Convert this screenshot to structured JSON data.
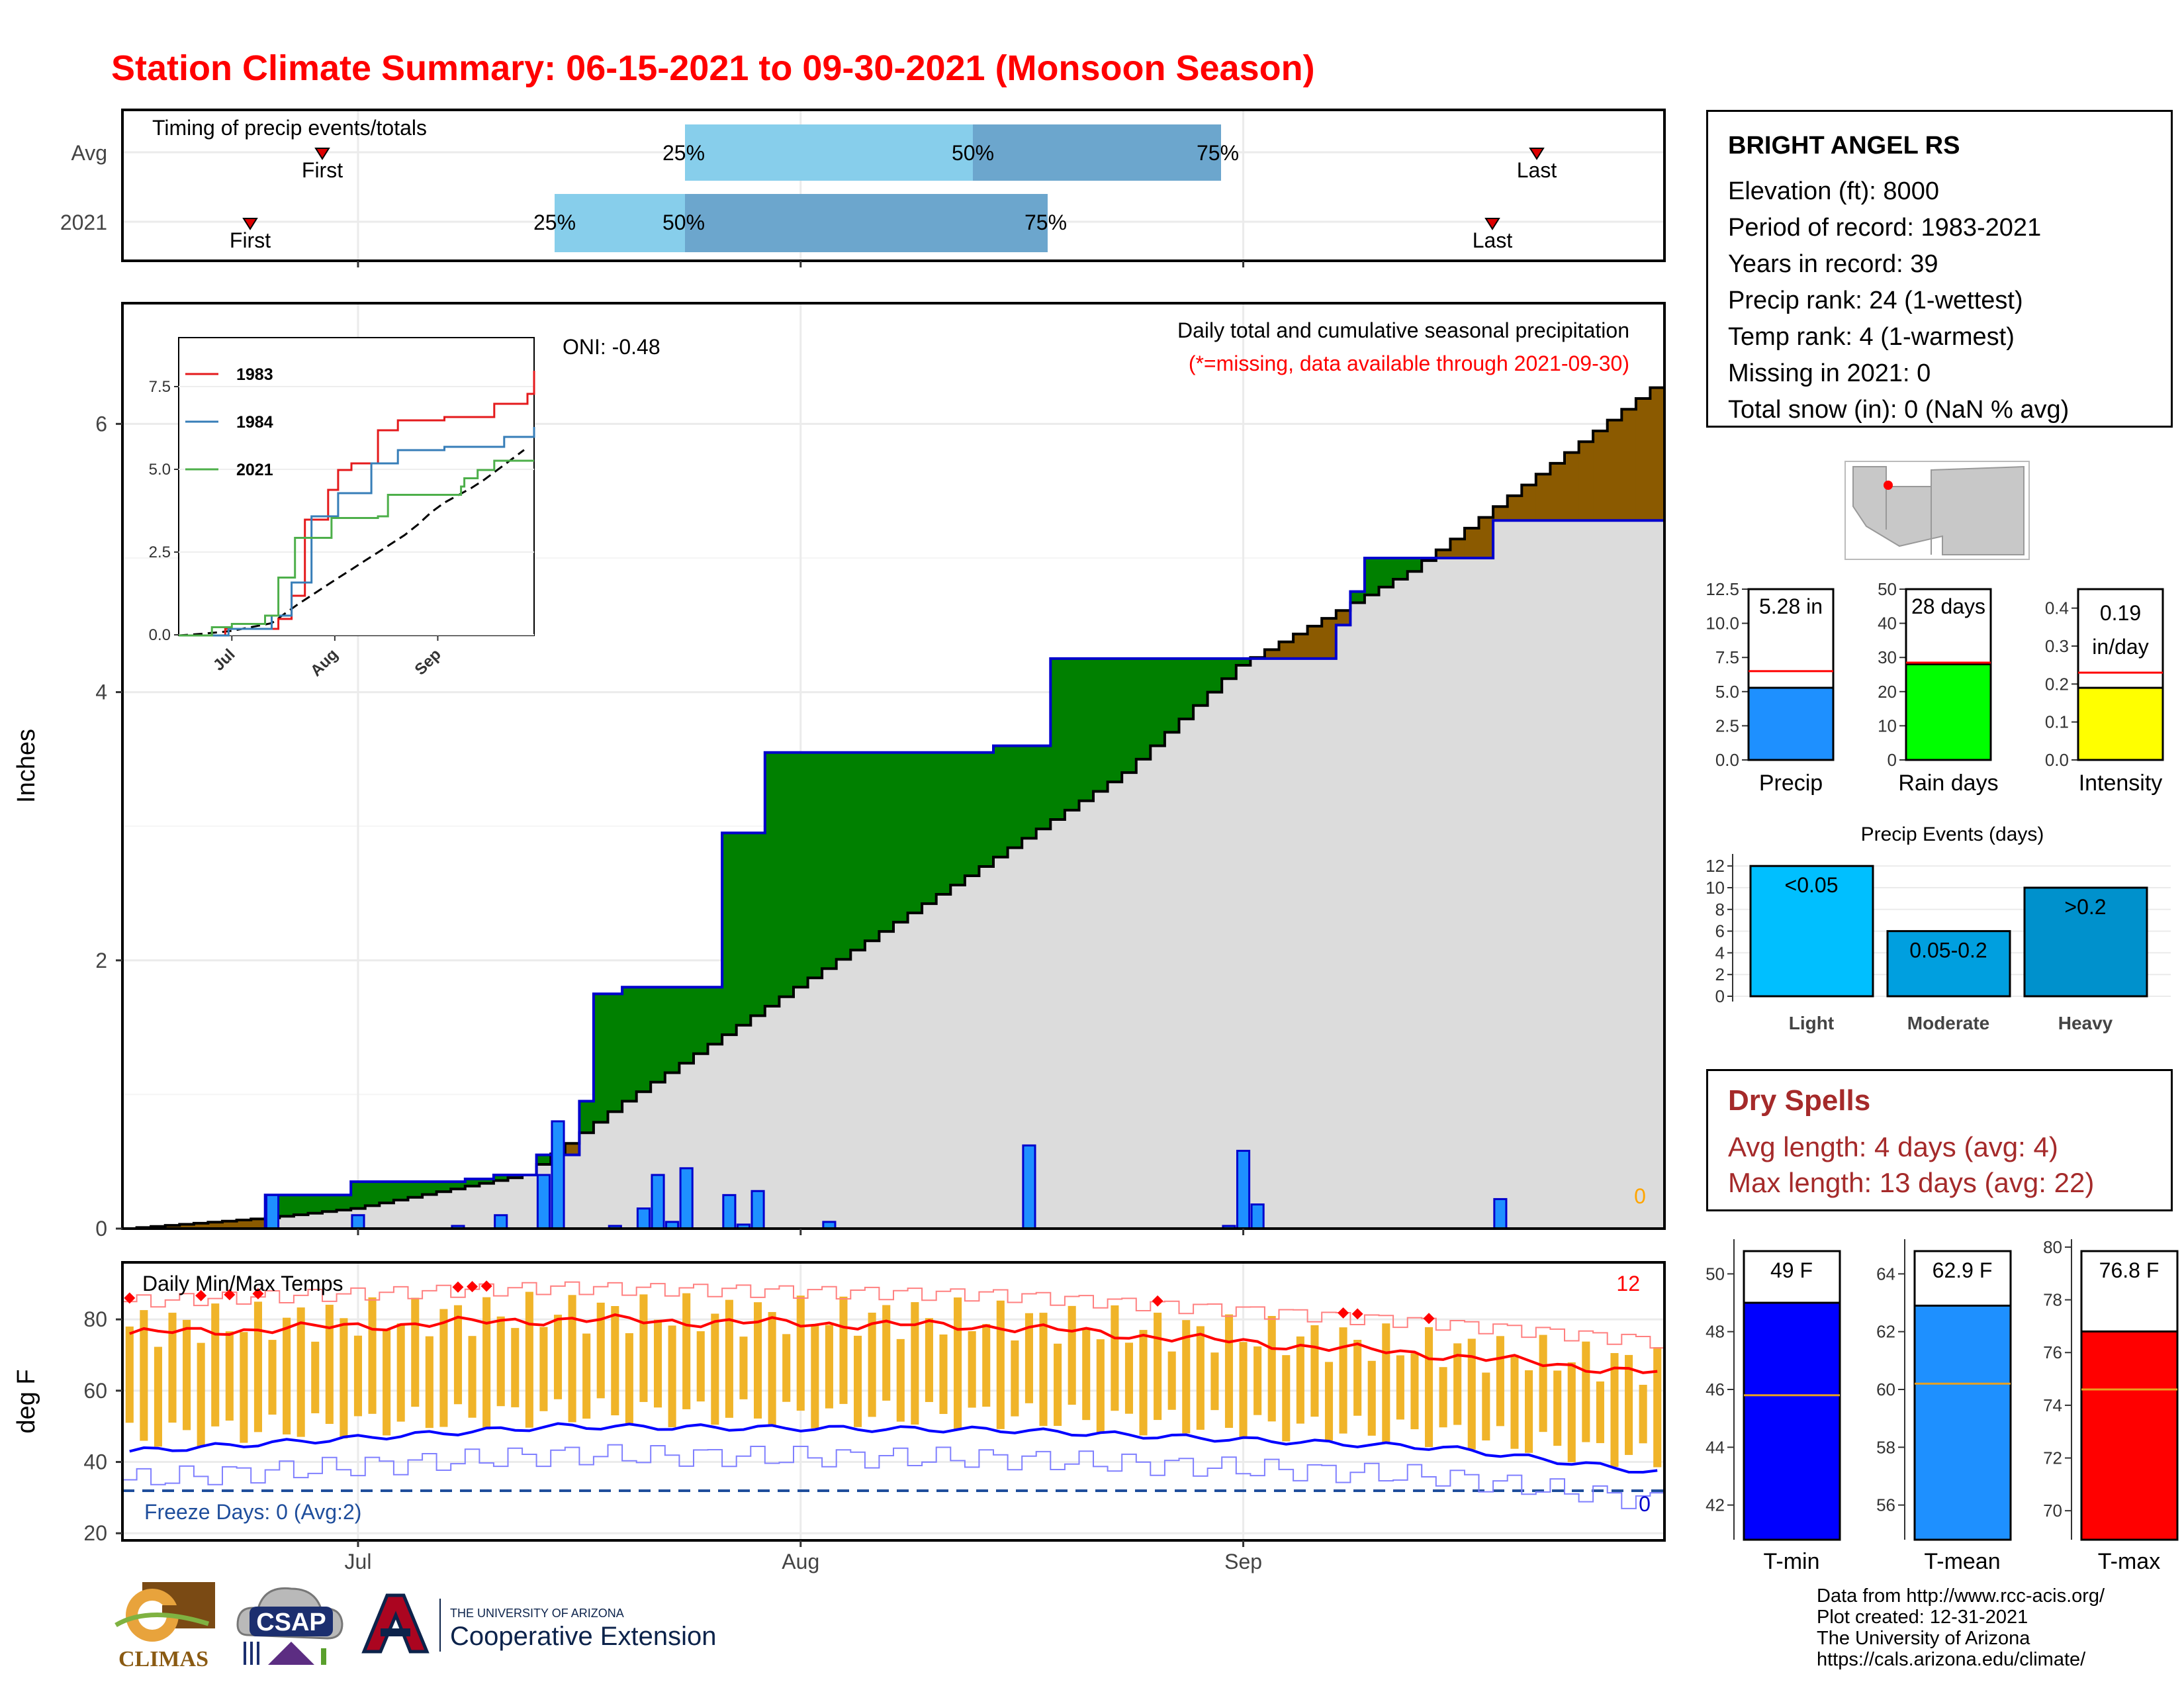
{
  "title": "Station Climate Summary: 06-15-2021 to 09-30-2021 (Monsoon Season)",
  "timing": {
    "title": "Timing of precip events/totals",
    "rows": [
      "Avg",
      "2021"
    ],
    "avg": {
      "first": "First",
      "last": "Last",
      "p25": "25%",
      "p50": "50%",
      "p75": "75%"
    },
    "y2021": {
      "first": "First",
      "last": "Last",
      "p25": "25%",
      "p50": "50%",
      "p75": "75%"
    }
  },
  "main_panel": {
    "oni": "ONI: -0.48",
    "legend1": "Daily total and cumulative seasonal precipitation",
    "legend2": "(*=missing, data available through 2021-09-30)",
    "y_label": "Inches",
    "y_ticks": [
      "0",
      "2",
      "4",
      "6"
    ],
    "missing_count": "0",
    "inset_years": [
      "1983",
      "1984",
      "2021"
    ],
    "inset_y_ticks": [
      "0.0",
      "2.5",
      "5.0",
      "7.5"
    ],
    "inset_x_ticks": [
      "Jul",
      "Aug",
      "Sep"
    ]
  },
  "temp_panel": {
    "title": "Daily Min/Max Temps",
    "y_label": "deg F",
    "y_ticks": [
      "20",
      "40",
      "60",
      "80"
    ],
    "record_count": "12",
    "freeze": "Freeze Days: 0 (Avg:2)",
    "freeze_count": "0",
    "x_ticks": [
      "Jul",
      "Aug",
      "Sep"
    ]
  },
  "station": {
    "name": "BRIGHT ANGEL RS",
    "lines": [
      "Elevation (ft): 8000",
      "Period of record: 1983-2021",
      "Years in record: 39",
      "Precip rank: 24 (1-wettest)",
      "Temp rank: 4 (1-warmest)",
      "Missing in 2021: 0",
      "Total snow (in): 0 (NaN % avg)"
    ]
  },
  "summary_bars": {
    "precip": {
      "label": "Precip",
      "value_text": "5.28 in",
      "value": 5.28,
      "avg": 6.5,
      "ticks": [
        "0.0",
        "2.5",
        "5.0",
        "7.5",
        "10.0",
        "12.5"
      ]
    },
    "rain_days": {
      "label": "Rain days",
      "value_text": "28 days",
      "value": 28,
      "avg": 28.5,
      "ticks": [
        "0",
        "10",
        "20",
        "30",
        "40",
        "50"
      ]
    },
    "intensity": {
      "label": "Intensity",
      "value_text1": "0.19",
      "value_text2": "in/day",
      "value": 0.19,
      "avg": 0.23,
      "ticks": [
        "0.0",
        "0.1",
        "0.2",
        "0.3",
        "0.4"
      ]
    }
  },
  "events": {
    "title": "Precip Events (days)",
    "ticks": [
      "0",
      "2",
      "4",
      "6",
      "8",
      "10",
      "12"
    ],
    "bars": [
      {
        "cat": "Light",
        "label": "<0.05",
        "value": 12,
        "color": "#00bfff"
      },
      {
        "cat": "Moderate",
        "label": "0.05-0.2",
        "value": 6,
        "color": "#009fdf"
      },
      {
        "cat": "Heavy",
        "label": ">0.2",
        "value": 10,
        "color": "#0091cc"
      }
    ]
  },
  "dry_spells": {
    "title": "Dry Spells",
    "avg": "Avg length: 4 days (avg: 4)",
    "max": "Max length: 13 days (avg: 22)"
  },
  "temp_bars": {
    "tmin": {
      "label": "T-min",
      "value_text": "49 F",
      "value": 49,
      "avg": 45.8,
      "ticks": [
        "42",
        "44",
        "46",
        "48",
        "50"
      ],
      "color": "#0000ff"
    },
    "tmean": {
      "label": "T-mean",
      "value_text": "62.9 F",
      "value": 62.9,
      "avg": 60.2,
      "ticks": [
        "56",
        "58",
        "60",
        "62",
        "64"
      ],
      "color": "#1e90ff"
    },
    "tmax": {
      "label": "T-max",
      "value_text": "76.8 F",
      "value": 76.8,
      "avg": 74.6,
      "ticks": [
        "70",
        "72",
        "74",
        "76",
        "78",
        "80"
      ],
      "color": "#ff0000"
    }
  },
  "footer": {
    "lines": [
      "Data from http://www.rcc-acis.org/",
      "Plot created: 12-31-2021",
      "The University of Arizona",
      "https://cals.arizona.edu/climate/"
    ]
  },
  "logos": {
    "climas": "CLIMAS",
    "csap": "CSAP",
    "ua_top": "THE UNIVERSITY OF ARIZONA",
    "ua_main": "Cooperative Extension"
  },
  "chart_data": [
    {
      "type": "area",
      "title": "Daily total and cumulative seasonal precipitation",
      "ylabel": "Inches",
      "x_range": [
        "2021-06-15",
        "2021-09-30"
      ],
      "ylim": [
        0,
        6.9
      ],
      "series": [
        {
          "name": "2021",
          "x": [
            "06-15",
            "06-25",
            "07-01",
            "07-09",
            "07-11",
            "07-14",
            "07-17",
            "07-18",
            "07-20",
            "07-27",
            "07-30",
            "08-05",
            "08-15",
            "08-19",
            "09-08",
            "09-09",
            "09-10",
            "09-19",
            "09-30"
          ],
          "values": [
            0.0,
            0.25,
            0.35,
            0.37,
            0.4,
            0.55,
            0.95,
            1.75,
            1.8,
            2.95,
            3.55,
            3.55,
            3.6,
            4.25,
            4.5,
            4.75,
            5.0,
            5.28,
            5.28
          ]
        }
      ],
      "daily_precip": {
        "dates": [
          "06-25",
          "07-01",
          "07-08",
          "07-11",
          "07-14",
          "07-15",
          "07-19",
          "07-21",
          "07-22",
          "07-23",
          "07-24",
          "07-27",
          "07-28",
          "07-29",
          "08-03",
          "08-17",
          "08-31",
          "09-01",
          "09-02",
          "09-19"
        ],
        "values": [
          0.25,
          0.1,
          0.02,
          0.1,
          0.4,
          0.8,
          0.02,
          0.15,
          0.4,
          0.05,
          0.45,
          0.25,
          0.03,
          0.28,
          0.05,
          0.62,
          0.02,
          0.58,
          0.18,
          0.22
        ]
      }
    },
    {
      "type": "line",
      "title": "Inset cumulative precipitation",
      "series": [
        {
          "name": "1983",
          "x": [
            "06-15",
            "07-15",
            "07-25",
            "08-10",
            "09-30"
          ],
          "values": [
            0.0,
            1.5,
            4.0,
            6.0,
            7.8
          ]
        },
        {
          "name": "1984",
          "x": [
            "06-15",
            "07-15",
            "07-25",
            "08-10",
            "09-30"
          ],
          "values": [
            0.0,
            2.0,
            3.5,
            5.5,
            6.4
          ]
        },
        {
          "name": "2021",
          "x": [
            "06-15",
            "07-15",
            "07-25",
            "08-10",
            "09-30"
          ],
          "values": [
            0.0,
            1.8,
            3.6,
            4.8,
            5.3
          ]
        }
      ],
      "ylim": [
        0,
        9
      ]
    },
    {
      "type": "line",
      "title": "Daily Min/Max Temps",
      "ylabel": "deg F",
      "ylim": [
        18,
        96
      ],
      "series": [
        {
          "name": "Avg max",
          "x": [
            "06-15",
            "07-15",
            "08-15",
            "09-15",
            "09-30"
          ],
          "values": [
            76,
            80,
            78,
            70,
            65
          ]
        },
        {
          "name": "Avg min",
          "x": [
            "06-15",
            "07-15",
            "08-15",
            "09-15",
            "09-30"
          ],
          "values": [
            43,
            50,
            49,
            44,
            37
          ]
        }
      ]
    },
    {
      "type": "bar",
      "title": "Precip Events (days)",
      "categories": [
        "Light",
        "Moderate",
        "Heavy"
      ],
      "values": [
        12,
        6,
        10
      ]
    }
  ]
}
